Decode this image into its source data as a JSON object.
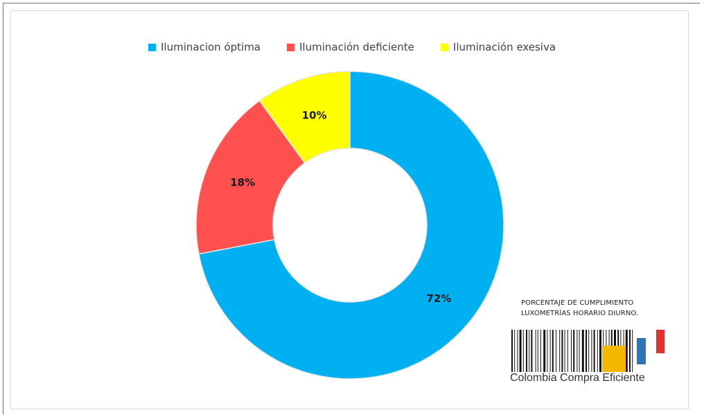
{
  "chart_data": {
    "type": "pie",
    "donut": true,
    "categories": [
      "Iluminacion óptima",
      "Iluminación deficiente",
      "Iluminación exesiva"
    ],
    "values": [
      72,
      18,
      10
    ],
    "data_labels": [
      "72%",
      "18%",
      "10%"
    ],
    "colors": [
      "#00b0f0",
      "#ff5050",
      "#ffff00"
    ],
    "legend_position": "top",
    "title": ""
  },
  "logo": {
    "caption_line1": "PORCENTAJE DE CUMPLIMIENTO",
    "caption_line2": "LUXOMETRÍAS HORARIO DIURNO.",
    "brand": "Colombia Compra Eficiente",
    "accent_colors": [
      "#f5b800",
      "#2e75b6",
      "#e03030"
    ]
  }
}
